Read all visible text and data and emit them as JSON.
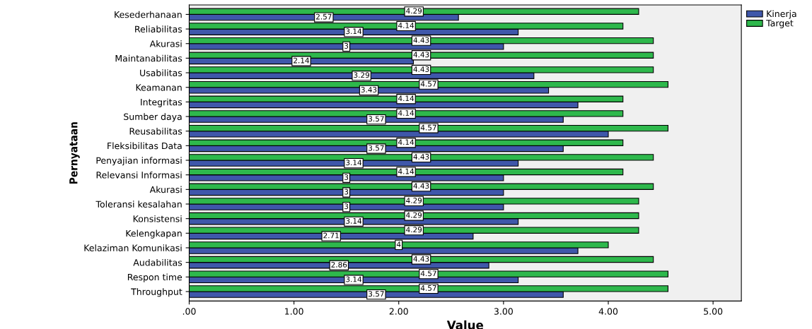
{
  "chart_data": {
    "type": "bar",
    "orientation": "horizontal",
    "xlabel": "Value",
    "ylabel": "Pernyataan",
    "categories": [
      "Kesederhanaan",
      "Reliabilitas",
      "Akurasi",
      "Maintanabilitas",
      "Usabilitas",
      "Keamanan",
      "Integritas",
      "Sumber daya",
      "Reusabilitas",
      "Fleksibilitas Data",
      "Penyajian informasi",
      "Relevansi Informasi",
      "Akurasi",
      "Toleransi kesalahan",
      "Konsistensi",
      "Kelengkapan",
      "Kelaziman Komunikasi",
      "Audabilitas",
      "Respon time",
      "Throughput"
    ],
    "series": [
      {
        "name": "Kinerja",
        "color": "#3f57aa",
        "values": [
          2.57,
          3.14,
          3,
          2.14,
          3.29,
          3.43,
          3.71,
          3.57,
          4.0,
          3.57,
          3.14,
          3,
          3,
          3,
          3.14,
          2.71,
          3.71,
          2.86,
          3.14,
          3.57
        ],
        "value_labels": [
          "2.57",
          "3.14",
          "3",
          "2.14",
          "3.29",
          "3.43",
          null,
          "3.57",
          null,
          "3.57",
          "3.14",
          "3",
          "3",
          "3",
          "3.14",
          "2.71",
          null,
          "2.86",
          "3.14",
          "3.57"
        ]
      },
      {
        "name": "Target",
        "color": "#2eb84c",
        "values": [
          4.29,
          4.14,
          4.43,
          4.43,
          4.43,
          4.57,
          4.14,
          4.14,
          4.57,
          4.14,
          4.43,
          4.14,
          4.43,
          4.29,
          4.29,
          4.29,
          4,
          4.43,
          4.57,
          4.57
        ],
        "value_labels": [
          "4.29",
          "4.14",
          "4.43",
          "4.43",
          "4.43",
          "4.57",
          "4.14",
          "4.14",
          "4.57",
          "4.14",
          "4.43",
          "4.14",
          "4.43",
          "4.29",
          "4.29",
          "4.29",
          "4",
          "4.43",
          "4.57",
          "4.57"
        ]
      }
    ],
    "xlim": [
      0,
      5.27
    ],
    "xticks": [
      {
        "value": 0,
        "label": ".00"
      },
      {
        "value": 1,
        "label": "1.00"
      },
      {
        "value": 2,
        "label": "2.00"
      },
      {
        "value": 3,
        "label": "3.00"
      },
      {
        "value": 4,
        "label": "4.00"
      },
      {
        "value": 5,
        "label": "5.00"
      }
    ],
    "grid": false,
    "legend": "top right"
  }
}
